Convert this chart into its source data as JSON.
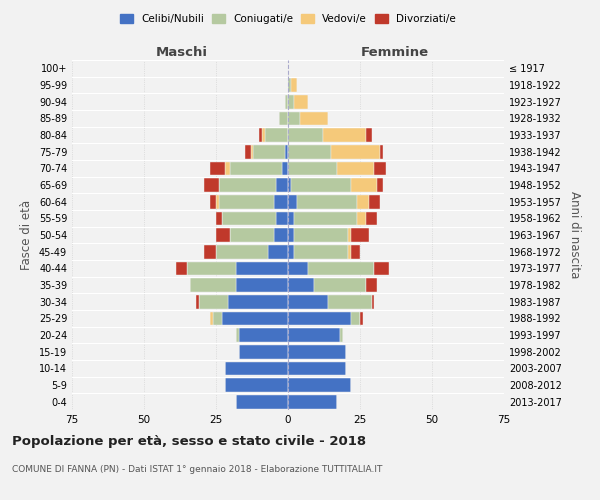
{
  "age_groups": [
    "0-4",
    "5-9",
    "10-14",
    "15-19",
    "20-24",
    "25-29",
    "30-34",
    "35-39",
    "40-44",
    "45-49",
    "50-54",
    "55-59",
    "60-64",
    "65-69",
    "70-74",
    "75-79",
    "80-84",
    "85-89",
    "90-94",
    "95-99",
    "100+"
  ],
  "birth_years": [
    "2013-2017",
    "2008-2012",
    "2003-2007",
    "1998-2002",
    "1993-1997",
    "1988-1992",
    "1983-1987",
    "1978-1982",
    "1973-1977",
    "1968-1972",
    "1963-1967",
    "1958-1962",
    "1953-1957",
    "1948-1952",
    "1943-1947",
    "1938-1942",
    "1933-1937",
    "1928-1932",
    "1923-1927",
    "1918-1922",
    "≤ 1917"
  ],
  "male": {
    "celibi": [
      18,
      22,
      22,
      17,
      17,
      23,
      21,
      18,
      18,
      7,
      5,
      4,
      5,
      4,
      2,
      1,
      0,
      0,
      0,
      0,
      0
    ],
    "coniugati": [
      0,
      0,
      0,
      0,
      1,
      3,
      10,
      16,
      17,
      18,
      15,
      19,
      19,
      20,
      18,
      11,
      8,
      3,
      1,
      0,
      0
    ],
    "vedovi": [
      0,
      0,
      0,
      0,
      0,
      1,
      0,
      0,
      0,
      0,
      0,
      0,
      1,
      0,
      2,
      1,
      1,
      0,
      0,
      0,
      0
    ],
    "divorziati": [
      0,
      0,
      0,
      0,
      0,
      0,
      1,
      0,
      4,
      4,
      5,
      2,
      2,
      5,
      5,
      2,
      1,
      0,
      0,
      0,
      0
    ]
  },
  "female": {
    "nubili": [
      17,
      22,
      20,
      20,
      18,
      22,
      14,
      9,
      7,
      2,
      2,
      2,
      3,
      1,
      0,
      0,
      0,
      0,
      0,
      0,
      0
    ],
    "coniugate": [
      0,
      0,
      0,
      0,
      1,
      3,
      15,
      18,
      23,
      19,
      19,
      22,
      21,
      21,
      17,
      15,
      12,
      4,
      2,
      1,
      0
    ],
    "vedove": [
      0,
      0,
      0,
      0,
      0,
      0,
      0,
      0,
      0,
      1,
      1,
      3,
      4,
      9,
      13,
      17,
      15,
      10,
      5,
      2,
      0
    ],
    "divorziate": [
      0,
      0,
      0,
      0,
      0,
      1,
      1,
      4,
      5,
      3,
      6,
      4,
      4,
      2,
      4,
      1,
      2,
      0,
      0,
      0,
      0
    ]
  },
  "colors": {
    "celibi": "#4472c4",
    "coniugati": "#b5c9a0",
    "vedovi": "#f5c97a",
    "divorziati": "#c0392b"
  },
  "xlim": 75,
  "title": "Popolazione per età, sesso e stato civile - 2018",
  "subtitle": "COMUNE DI FANNA (PN) - Dati ISTAT 1° gennaio 2018 - Elaborazione TUTTITALIA.IT",
  "ylabel_left": "Fasce di età",
  "ylabel_right": "Anni di nascita",
  "xlabel_maschi": "Maschi",
  "xlabel_femmine": "Femmine",
  "legend_labels": [
    "Celibi/Nubili",
    "Coniugati/e",
    "Vedovi/e",
    "Divorziati/e"
  ],
  "background_color": "#f2f2f2",
  "bar_edgecolor": "#f2f2f2"
}
